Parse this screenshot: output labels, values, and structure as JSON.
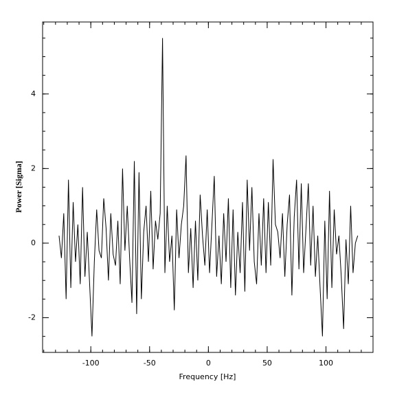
{
  "chart_data": {
    "type": "line",
    "xlabel": "Frequency [Hz]",
    "ylabel": "Power [Sigma]",
    "x": [
      -127,
      -125,
      -123,
      -121,
      -119,
      -117,
      -115,
      -113,
      -111,
      -109,
      -107,
      -105,
      -103,
      -101,
      -99,
      -97,
      -95,
      -93,
      -91,
      -89,
      -87,
      -85,
      -83,
      -81,
      -79,
      -77,
      -75,
      -73,
      -71,
      -69,
      -67,
      -65,
      -63,
      -61,
      -59,
      -57,
      -55,
      -53,
      -51,
      -49,
      -47,
      -45,
      -43,
      -41,
      -39,
      -37,
      -35,
      -33,
      -31,
      -29,
      -27,
      -25,
      -23,
      -21,
      -19,
      -17,
      -15,
      -13,
      -11,
      -9,
      -7,
      -5,
      -3,
      -1,
      1,
      3,
      5,
      7,
      9,
      11,
      13,
      15,
      17,
      19,
      21,
      23,
      25,
      27,
      29,
      31,
      33,
      35,
      37,
      39,
      41,
      43,
      45,
      47,
      49,
      51,
      53,
      55,
      57,
      59,
      61,
      63,
      65,
      67,
      69,
      71,
      73,
      75,
      77,
      79,
      81,
      83,
      85,
      87,
      89,
      91,
      93,
      95,
      97,
      99,
      101,
      103,
      105,
      107,
      109,
      111,
      113,
      115,
      117,
      119,
      121,
      123,
      125,
      127
    ],
    "series": [
      {
        "color": "#000000",
        "values": [
          0.2,
          -0.4,
          0.8,
          -1.5,
          1.7,
          -1.2,
          1.1,
          -0.5,
          0.5,
          -1.1,
          1.5,
          -0.9,
          0.3,
          -1.1,
          -2.5,
          -0.5,
          0.9,
          -0.2,
          -0.4,
          1.2,
          0.4,
          -1.0,
          0.8,
          -0.3,
          -0.6,
          0.6,
          -1.1,
          2.0,
          -0.2,
          1.0,
          -0.4,
          -1.6,
          2.2,
          -1.9,
          1.9,
          -1.5,
          0.3,
          1.0,
          -0.5,
          1.4,
          -0.7,
          0.6,
          0.1,
          0.8,
          5.5,
          -0.8,
          1.0,
          -0.5,
          0.2,
          -1.8,
          0.9,
          -0.4,
          0.5,
          1.0,
          2.35,
          -0.8,
          0.4,
          -1.2,
          0.6,
          -1.0,
          1.3,
          0.2,
          -0.6,
          0.9,
          -0.8,
          0.5,
          1.8,
          -0.9,
          0.2,
          -1.1,
          0.8,
          -0.5,
          1.2,
          -1.2,
          0.9,
          -1.4,
          0.3,
          -0.8,
          1.1,
          -1.3,
          1.7,
          -0.2,
          1.5,
          -0.5,
          -1.1,
          0.8,
          -0.6,
          1.2,
          -0.8,
          1.1,
          -0.6,
          2.25,
          0.5,
          0.3,
          -0.4,
          0.8,
          -0.9,
          0.5,
          1.3,
          -1.4,
          0.7,
          1.7,
          -0.7,
          1.6,
          -0.8,
          0.4,
          1.6,
          -0.6,
          1.0,
          -0.9,
          0.2,
          -1.2,
          -2.5,
          0.6,
          -1.5,
          1.4,
          -1.2,
          0.9,
          -0.3,
          0.2,
          -0.9,
          -2.3,
          0.1,
          -1.1,
          1.0,
          -0.8,
          0.0,
          0.2
        ]
      }
    ],
    "xlim": [
      -141,
      140
    ],
    "ylim": [
      -2.93,
      5.93
    ],
    "xticks": [
      -100,
      -50,
      0,
      50,
      100
    ],
    "yticks": [
      -2,
      0,
      2,
      4
    ]
  }
}
